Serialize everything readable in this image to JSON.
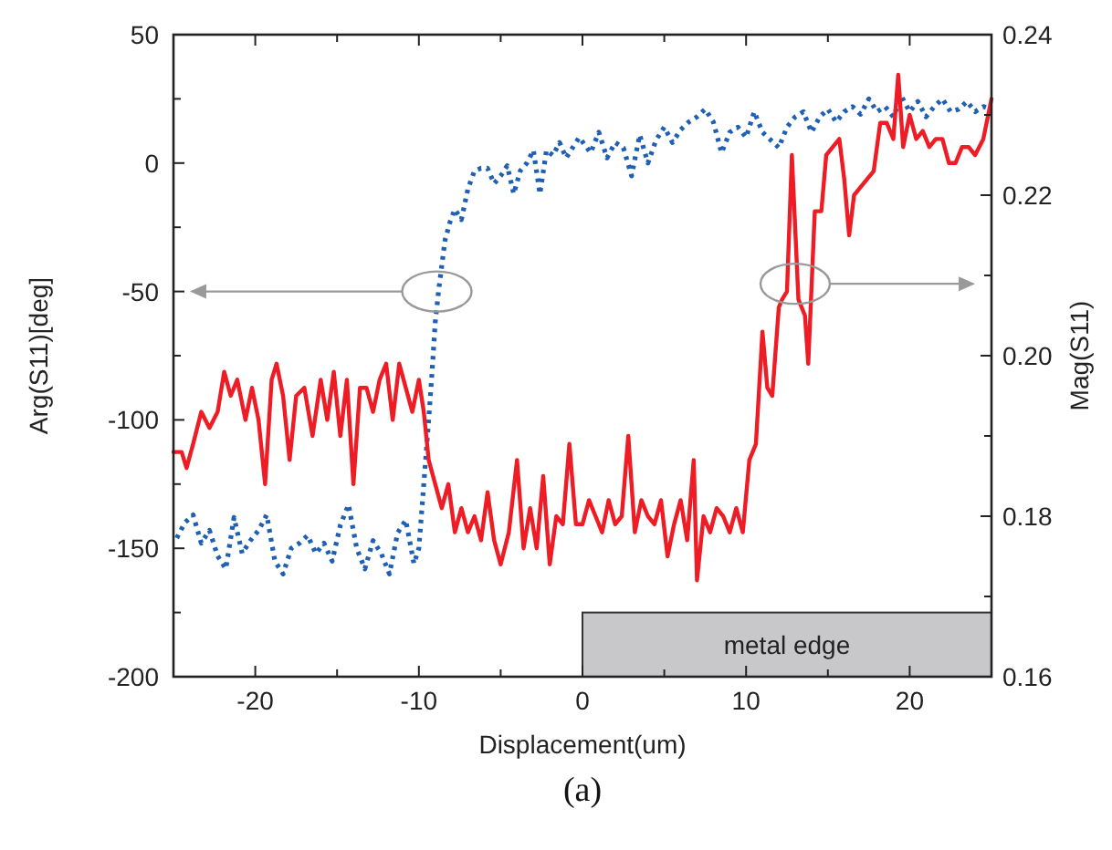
{
  "chart_data": {
    "type": "line",
    "xlabel": "Displacement(um)",
    "ylabel": "Arg(S11)[deg]",
    "y2label": "Mag(S11)",
    "xlim": [
      -25,
      25
    ],
    "xticks": [
      {
        "value": -25,
        "label": null
      },
      -20,
      {
        "value": -15,
        "label": null
      },
      -10,
      {
        "value": -5,
        "label": null
      },
      0,
      {
        "value": 5,
        "label": null
      },
      10,
      {
        "value": 15,
        "label": null
      },
      20,
      {
        "value": 25,
        "label": null
      }
    ],
    "ylim": [
      -200,
      50
    ],
    "yticks": [
      -200,
      {
        "value": -175,
        "label": null
      },
      -150,
      {
        "value": -125,
        "label": null
      },
      -100,
      {
        "value": -75,
        "label": null
      },
      -50,
      {
        "value": -25,
        "label": null
      },
      0,
      {
        "value": 25,
        "label": null
      },
      50
    ],
    "y2lim": [
      0.16,
      0.24
    ],
    "y2ticks": [
      {
        "value": 0.16,
        "label": "0.16"
      },
      {
        "value": 0.17,
        "label": null
      },
      {
        "value": 0.18,
        "label": "0.18"
      },
      {
        "value": 0.19,
        "label": null
      },
      {
        "value": 0.2,
        "label": "0.20"
      },
      {
        "value": 0.21,
        "label": null
      },
      {
        "value": 0.22,
        "label": "0.22"
      },
      {
        "value": 0.23,
        "label": null
      },
      {
        "value": 0.24,
        "label": "0.24"
      }
    ],
    "grid": false,
    "marker": "none",
    "bands": [
      {
        "axis": "x",
        "from": 0,
        "to": 25,
        "label": "metal edge",
        "color": "#c8c8ca"
      }
    ],
    "annotations": [
      "(a)"
    ],
    "series": [
      {
        "color": "#1f5fb4",
        "line_style": "dotted",
        "x": [
          -24.8,
          -24.3,
          -23.8,
          -23.3,
          -22.8,
          -22.3,
          -21.8,
          -21.3,
          -20.8,
          -20.3,
          -19.8,
          -19.3,
          -18.8,
          -18.3,
          -17.8,
          -17.3,
          -16.8,
          -16.3,
          -15.8,
          -15.3,
          -14.8,
          -14.3,
          -13.8,
          -13.3,
          -12.8,
          -12.3,
          -11.8,
          -11.3,
          -10.8,
          -10.3,
          -10.0,
          -9.7,
          -9.4,
          -9.2,
          -9.0,
          -8.8,
          -8.6,
          -8.4,
          -8.1,
          -7.8,
          -7.4,
          -7.0,
          -6.6,
          -6.2,
          -5.8,
          -5.4,
          -5.0,
          -4.6,
          -4.2,
          -3.8,
          -3.4,
          -3.0,
          -2.6,
          -2.2,
          -1.8,
          -1.4,
          -1.0,
          -0.6,
          -0.2,
          0.5,
          1.0,
          1.5,
          2.0,
          2.5,
          3.0,
          3.5,
          4.0,
          4.5,
          5.0,
          5.5,
          6.0,
          6.5,
          7.0,
          7.5,
          8.0,
          8.5,
          9.0,
          9.5,
          10.0,
          10.5,
          11.0,
          11.5,
          12.0,
          12.5,
          13.0,
          13.5,
          14.0,
          14.5,
          15.0,
          15.5,
          16.0,
          16.5,
          17.0,
          17.5,
          18.0,
          18.5,
          19.0,
          19.5,
          20.0,
          20.5,
          21.0,
          21.5,
          22.0,
          22.5,
          23.0,
          23.5,
          24.0,
          24.5,
          25.0
        ],
        "values": [
          -146,
          -140,
          -137,
          -148,
          -143,
          -153,
          -158,
          -138,
          -152,
          -147,
          -143,
          -137,
          -155,
          -160,
          -150,
          -148,
          -145,
          -152,
          -148,
          -155,
          -141,
          -133,
          -150,
          -158,
          -147,
          -152,
          -160,
          -144,
          -139,
          -156,
          -150,
          -125,
          -100,
          -82,
          -62,
          -50,
          -40,
          -30,
          -23,
          -18,
          -22,
          -10,
          -3,
          -2,
          -2,
          -8,
          -5,
          -1,
          -12,
          -3,
          0,
          5,
          -12,
          5,
          3,
          8,
          2,
          6,
          10,
          4,
          12,
          2,
          8,
          6,
          -5,
          11,
          0,
          9,
          14,
          8,
          13,
          16,
          18,
          21,
          16,
          4,
          12,
          14,
          10,
          20,
          12,
          9,
          6,
          14,
          18,
          20,
          12,
          18,
          21,
          16,
          20,
          22,
          19,
          25,
          20,
          22,
          18,
          26,
          20,
          24,
          18,
          22,
          25,
          20,
          21,
          24,
          20,
          22,
          21
        ]
      },
      {
        "color": "#ee1c25",
        "axis": "y2",
        "line_style": "solid",
        "x": [
          -25,
          -24.5,
          -24.2,
          -23.8,
          -23.3,
          -22.8,
          -22.3,
          -21.9,
          -21.5,
          -21.1,
          -20.6,
          -20.2,
          -19.8,
          -19.4,
          -19.0,
          -18.7,
          -18.3,
          -17.9,
          -17.5,
          -17.0,
          -16.5,
          -16.0,
          -15.6,
          -15.2,
          -14.8,
          -14.4,
          -14.0,
          -13.6,
          -13.2,
          -12.8,
          -12.4,
          -12.0,
          -11.6,
          -11.2,
          -10.8,
          -10.4,
          -10.0,
          -9.7,
          -9.4,
          -9.0,
          -8.6,
          -8.2,
          -7.8,
          -7.4,
          -7.0,
          -6.6,
          -6.2,
          -5.8,
          -5.4,
          -5.0,
          -4.5,
          -4.0,
          -3.6,
          -3.2,
          -2.8,
          -2.4,
          -2.0,
          -1.6,
          -1.2,
          -0.8,
          -0.4,
          0.0,
          0.4,
          0.8,
          1.2,
          1.6,
          2.0,
          2.4,
          2.8,
          3.2,
          3.6,
          4.0,
          4.4,
          4.8,
          5.2,
          5.6,
          6.0,
          6.4,
          6.8,
          7.0,
          7.4,
          7.8,
          8.2,
          8.6,
          9.0,
          9.4,
          9.8,
          10.2,
          10.6,
          11.0,
          11.3,
          11.6,
          12.0,
          12.2,
          12.5,
          12.8,
          13.2,
          13.6,
          13.8,
          14.2,
          14.6,
          14.9,
          15.3,
          15.7,
          16.0,
          16.3,
          16.6,
          17.0,
          17.4,
          17.8,
          18.2,
          18.6,
          19.0,
          19.3,
          19.6,
          20.0,
          20.4,
          20.8,
          21.2,
          21.6,
          22.0,
          22.4,
          22.8,
          23.2,
          23.6,
          24.0,
          24.5,
          25.0
        ],
        "values": [
          0.188,
          0.188,
          0.186,
          0.189,
          0.193,
          0.191,
          0.193,
          0.198,
          0.195,
          0.197,
          0.192,
          0.196,
          0.192,
          0.184,
          0.197,
          0.199,
          0.195,
          0.187,
          0.195,
          0.196,
          0.19,
          0.197,
          0.192,
          0.198,
          0.19,
          0.197,
          0.184,
          0.196,
          0.196,
          0.193,
          0.197,
          0.199,
          0.192,
          0.199,
          0.196,
          0.193,
          0.197,
          0.193,
          0.187,
          0.184,
          0.181,
          0.184,
          0.178,
          0.181,
          0.178,
          0.18,
          0.177,
          0.183,
          0.177,
          0.174,
          0.178,
          0.187,
          0.176,
          0.181,
          0.176,
          0.185,
          0.174,
          0.18,
          0.179,
          0.189,
          0.179,
          0.179,
          0.182,
          0.18,
          0.178,
          0.182,
          0.179,
          0.18,
          0.19,
          0.178,
          0.182,
          0.18,
          0.179,
          0.182,
          0.175,
          0.179,
          0.182,
          0.177,
          0.187,
          0.172,
          0.18,
          0.178,
          0.181,
          0.18,
          0.178,
          0.181,
          0.178,
          0.187,
          0.189,
          0.203,
          0.196,
          0.195,
          0.206,
          0.207,
          0.208,
          0.225,
          0.207,
          0.205,
          0.199,
          0.218,
          0.218,
          0.225,
          0.226,
          0.227,
          0.222,
          0.215,
          0.22,
          0.221,
          0.222,
          0.223,
          0.229,
          0.229,
          0.227,
          0.235,
          0.226,
          0.23,
          0.227,
          0.228,
          0.226,
          0.227,
          0.227,
          0.224,
          0.224,
          0.226,
          0.226,
          0.225,
          0.227,
          0.232
        ]
      }
    ]
  }
}
